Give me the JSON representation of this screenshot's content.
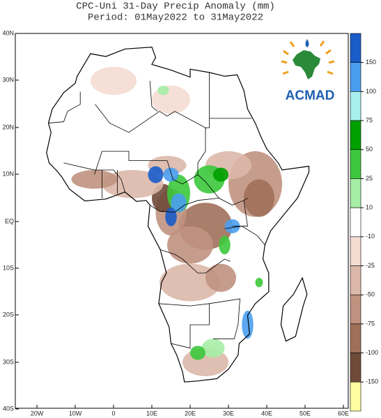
{
  "header": {
    "title": "CPC-Uni 31-Day Precip Anomaly (mm)",
    "period": "Period: 01May2022 to 31May2022"
  },
  "map": {
    "lat_labels": [
      "40N",
      "30N",
      "20N",
      "10N",
      "EQ",
      "10S",
      "20S",
      "30S",
      "40S"
    ],
    "lon_labels": [
      "20W",
      "10W",
      "0",
      "10E",
      "20E",
      "30E",
      "40E",
      "50E",
      "60E"
    ]
  },
  "colorbar": {
    "labels": [
      "150",
      "100",
      "75",
      "50",
      "25",
      "10",
      "-10",
      "-25",
      "-50",
      "-75",
      "-100",
      "-150"
    ],
    "colors": [
      "#1a5cc8",
      "#4a9ef0",
      "#a8f0f0",
      "#00a000",
      "#3cc83c",
      "#a6eea6",
      "#ffffff",
      "#f4dcd2",
      "#dcb8aa",
      "#c0927f",
      "#a0705a",
      "#6e4a38",
      "#ffffa0"
    ]
  },
  "logo": {
    "text": "ACMAD"
  }
}
